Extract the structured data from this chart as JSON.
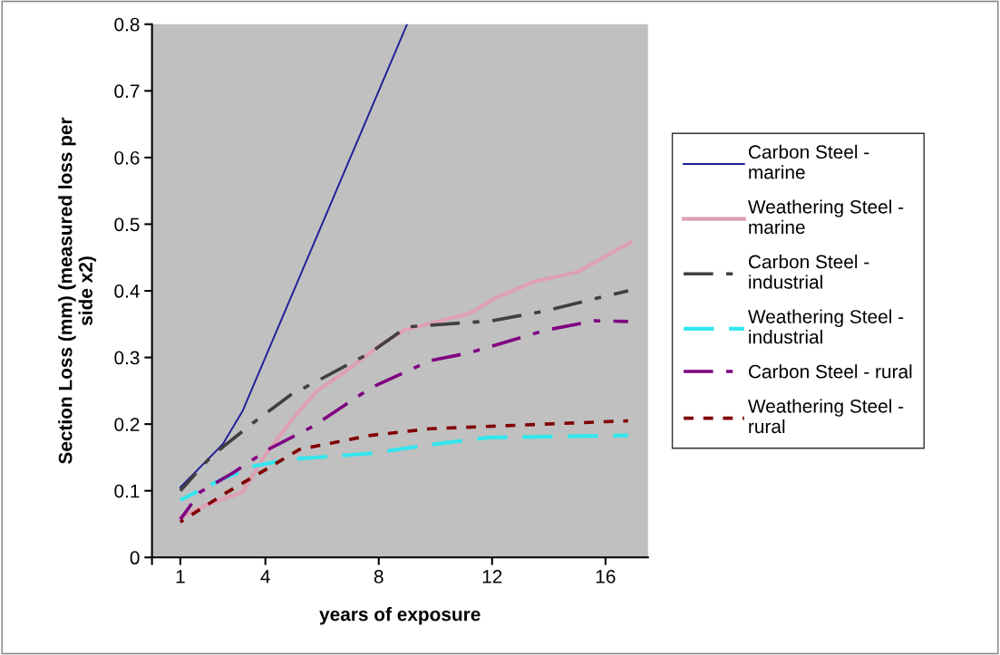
{
  "chart_data": {
    "type": "line",
    "xlabel": "years of exposure",
    "ylabel": "Section Loss (mm) (measured loss per\nside x2)",
    "xlim": [
      0,
      17.5
    ],
    "xticks": [
      {
        "value": 0,
        "label": null
      },
      1,
      4,
      8,
      12,
      16
    ],
    "ylim": [
      0,
      0.8
    ],
    "yticks": [
      0,
      0.1,
      0.2,
      0.3,
      0.4,
      0.5,
      0.6,
      0.7,
      0.8
    ],
    "grid": false,
    "legend": "right",
    "series": [
      {
        "name": "Carbon Steel -\nmarine",
        "color": "#1f1f99",
        "line_style": "solid",
        "x": [
          1,
          2.5,
          3.2,
          5.3,
          9
        ],
        "values": [
          0.105,
          0.17,
          0.22,
          0.43,
          0.8
        ]
      },
      {
        "name": "Weathering Steel -\nmarine",
        "color": "#dda0b4",
        "line_style": "solid",
        "x": [
          1,
          2,
          3.2,
          4,
          4.4,
          4.9,
          5.8,
          6.8,
          8,
          8.9,
          10,
          11.2,
          12.1,
          13.5,
          15,
          16.9
        ],
        "values": [
          0.06,
          0.08,
          0.098,
          0.154,
          0.176,
          0.205,
          0.249,
          0.278,
          0.317,
          0.341,
          0.353,
          0.366,
          0.389,
          0.414,
          0.428,
          0.473
        ]
      },
      {
        "name": "Carbon Steel -\nindustrial",
        "color": "#404040",
        "line_style": "dashdot",
        "x": [
          1,
          2.1,
          3.6,
          4.9,
          5.8,
          7.7,
          9,
          12,
          13.9,
          16,
          16.8
        ],
        "values": [
          0.1,
          0.152,
          0.203,
          0.244,
          0.264,
          0.307,
          0.346,
          0.355,
          0.37,
          0.392,
          0.4
        ]
      },
      {
        "name": "Weathering Steel -\nindustrial",
        "color": "#33e6ee",
        "line_style": "dashed",
        "x": [
          1,
          2.5,
          3.6,
          4.8,
          7.7,
          9.8,
          11.9,
          16.8
        ],
        "values": [
          0.086,
          0.118,
          0.137,
          0.147,
          0.156,
          0.169,
          0.18,
          0.183
        ]
      },
      {
        "name": "Carbon Steel - rural",
        "color": "#800080",
        "line_style": "dashdot",
        "x": [
          1,
          1.7,
          2.9,
          4.1,
          5.7,
          7.7,
          9.8,
          11.2,
          13.9,
          15.6,
          16.8
        ],
        "values": [
          0.057,
          0.098,
          0.128,
          0.162,
          0.197,
          0.254,
          0.295,
          0.307,
          0.341,
          0.355,
          0.354
        ]
      },
      {
        "name": "Weathering Steel -\nrural",
        "color": "#800000",
        "line_style": "dotted",
        "x": [
          1,
          2.5,
          3.9,
          5.2,
          7.7,
          9.8,
          16.8
        ],
        "values": [
          0.053,
          0.094,
          0.129,
          0.162,
          0.183,
          0.193,
          0.205
        ]
      }
    ]
  }
}
